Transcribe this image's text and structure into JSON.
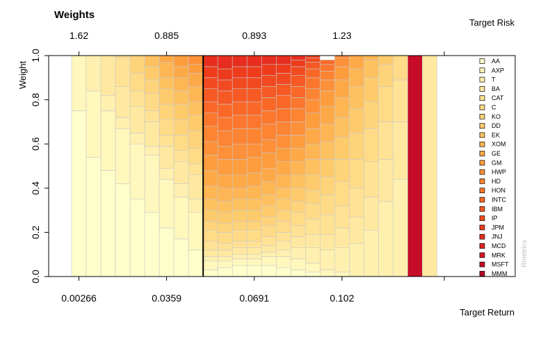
{
  "chart_data": {
    "type": "bar",
    "stacked": true,
    "title": "Weights",
    "ylabel": "Weight",
    "xlabel": "Target Return",
    "top_axis_label": "Target Risk",
    "credit": "Rmetrics",
    "ylim": [
      0,
      1
    ],
    "y_ticks": [
      "0.0",
      "0.2",
      "0.4",
      "0.6",
      "0.8",
      "1.0"
    ],
    "bottom_tick_labels": [
      {
        "bar": 1,
        "label": "0.00266"
      },
      {
        "bar": 7,
        "label": "0.0359"
      },
      {
        "bar": 13,
        "label": "0.0691"
      },
      {
        "bar": 19,
        "label": "0.102"
      }
    ],
    "top_tick_labels": [
      {
        "bar": 1,
        "label": "1.62"
      },
      {
        "bar": 7,
        "label": "0.885"
      },
      {
        "bar": 13,
        "label": "0.893"
      },
      {
        "bar": 19,
        "label": "1.23"
      }
    ],
    "marker_line_after_bar": 9,
    "grid": false,
    "legend_position": "right",
    "legend": [
      "AA",
      "AXP",
      "T",
      "BA",
      "CAT",
      "C",
      "KO",
      "DD",
      "EK",
      "XOM",
      "GE",
      "GM",
      "HWP",
      "HD",
      "HON",
      "INTC",
      "IBM",
      "IP",
      "JPM",
      "JNJ",
      "MCD",
      "MRK",
      "MSFT",
      "MMM"
    ],
    "series_colors": [
      "#FFFFCC",
      "#FFF7BC",
      "#FFF0AF",
      "#FFE9A1",
      "#FFE294",
      "#FFDB87",
      "#FED37A",
      "#FECB6C",
      "#FEC160",
      "#FEB553",
      "#FEA947",
      "#FD9D3E",
      "#FD9038",
      "#FC8432",
      "#FC772D",
      "#FA6828",
      "#F65924",
      "#F24A20",
      "#EE3B1C",
      "#E72E1E",
      "#DF2321",
      "#D41724",
      "#C60C26",
      "#B80427"
    ],
    "bars": [
      {
        "segments": [
          0.75,
          0.25
        ]
      },
      {
        "segments": [
          0.54,
          0.3,
          0.16
        ]
      },
      {
        "segments": [
          0.48,
          0.27,
          0.07,
          0.18
        ]
      },
      {
        "segments": [
          0.42,
          0.25,
          0.05,
          0.14,
          0.13,
          0.01
        ]
      },
      {
        "segments": [
          0.35,
          0.25,
          0.05,
          0.12,
          0.07,
          0.08,
          0.08
        ]
      },
      {
        "segments": [
          0.29,
          0.26,
          0.04,
          0.11,
          0.05,
          0.08,
          0.06,
          0.06,
          0.05
        ]
      },
      {
        "segments": [
          0.22,
          0.22,
          0.05,
          0.1,
          0.05,
          0.07,
          0.07,
          0.07,
          0.05,
          0.07,
          0.06,
          0.03
        ]
      },
      {
        "segments": [
          0.17,
          0.19,
          0.06,
          0.1,
          0.05,
          0.07,
          0.07,
          0.07,
          0.06,
          0.06,
          0.05,
          0.05
        ]
      },
      {
        "segments": [
          0.12,
          0.17,
          0.06,
          0.11,
          0.05,
          0.07,
          0.08,
          0.07,
          0.06,
          0.07,
          0.06,
          0.04,
          0.04
        ]
      },
      {
        "segments": [
          0.03,
          0.04,
          0.02,
          0.03,
          0.04,
          0.05,
          0.04,
          0.05,
          0.05,
          0.06,
          0.07,
          0.07,
          0.06,
          0.07,
          0.06,
          0.05,
          0.06,
          0.05,
          0.05,
          0.05
        ]
      },
      {
        "segments": [
          0.04,
          0.03,
          0.02,
          0.03,
          0.03,
          0.05,
          0.04,
          0.05,
          0.05,
          0.06,
          0.06,
          0.07,
          0.06,
          0.07,
          0.06,
          0.06,
          0.06,
          0.05,
          0.05,
          0.06
        ]
      },
      {
        "segments": [
          0.05,
          0.03,
          0.02,
          0.03,
          0.03,
          0.05,
          0.04,
          0.05,
          0.05,
          0.05,
          0.06,
          0.07,
          0.07,
          0.07,
          0.06,
          0.06,
          0.06,
          0.05,
          0.05,
          0.05
        ]
      },
      {
        "segments": [
          0.05,
          0.03,
          0.02,
          0.03,
          0.03,
          0.05,
          0.04,
          0.05,
          0.05,
          0.06,
          0.06,
          0.07,
          0.06,
          0.07,
          0.06,
          0.06,
          0.06,
          0.05,
          0.05,
          0.05
        ]
      },
      {
        "segments": [
          0.05,
          0.04,
          0.02,
          0.03,
          0.04,
          0.05,
          0.04,
          0.05,
          0.05,
          0.06,
          0.06,
          0.07,
          0.06,
          0.07,
          0.06,
          0.06,
          0.05,
          0.05,
          0.05,
          0.04
        ]
      },
      {
        "segments": [
          0.04,
          0.05,
          0.03,
          0.04,
          0.04,
          0.05,
          0.05,
          0.05,
          0.05,
          0.06,
          0.06,
          0.06,
          0.06,
          0.06,
          0.06,
          0.06,
          0.05,
          0.05,
          0.04,
          0.04
        ]
      },
      {
        "segments": [
          0.03,
          0.05,
          0.05,
          0.05,
          0.05,
          0.06,
          0.05,
          0.06,
          0.06,
          0.06,
          0.06,
          0.06,
          0.06,
          0.06,
          0.05,
          0.05,
          0.05,
          0.04,
          0.03,
          0.02
        ]
      },
      {
        "segments": [
          0.02,
          0.04,
          0.07,
          0.06,
          0.07,
          0.07,
          0.06,
          0.07,
          0.07,
          0.07,
          0.07,
          0.07,
          0.06,
          0.05,
          0.05,
          0.04,
          0.03,
          0.02,
          0.01
        ]
      },
      {
        "segments": [
          0.0,
          0.03,
          0.09,
          0.07,
          0.09,
          0.09,
          0.08,
          0.08,
          0.08,
          0.08,
          0.08,
          0.07,
          0.05,
          0.04,
          0.03,
          0.02
        ]
      },
      {
        "segments": [
          0.0,
          0.02,
          0.11,
          0.09,
          0.1,
          0.11,
          0.1,
          0.1,
          0.09,
          0.09,
          0.08,
          0.06,
          0.04,
          0.01
        ]
      },
      {
        "segments": [
          0.0,
          0.0,
          0.15,
          0.12,
          0.13,
          0.13,
          0.12,
          0.11,
          0.1,
          0.08,
          0.06
        ]
      },
      {
        "segments": [
          0.0,
          0.0,
          0.21,
          0.15,
          0.16,
          0.15,
          0.12,
          0.11,
          0.08,
          0.02
        ]
      },
      {
        "segments": [
          0.0,
          0.0,
          0.34,
          0.19,
          0.17,
          0.16,
          0.1,
          0.04
        ]
      },
      {
        "segments": [
          0.0,
          0.0,
          0.44,
          0.26,
          0.19,
          0.11
        ]
      },
      {
        "segments": [
          0.0,
          0.0,
          0.0,
          0.0,
          0.0,
          0.0,
          0.0,
          0.0,
          0.0,
          0.0,
          0.0,
          0.0,
          0.0,
          0.0,
          0.0,
          0.0,
          0.0,
          0.0,
          0.0,
          0.0,
          0.0,
          0.0,
          1.0
        ]
      },
      {
        "segments": [
          0.0,
          0.0,
          0.0,
          1.0
        ]
      }
    ]
  }
}
